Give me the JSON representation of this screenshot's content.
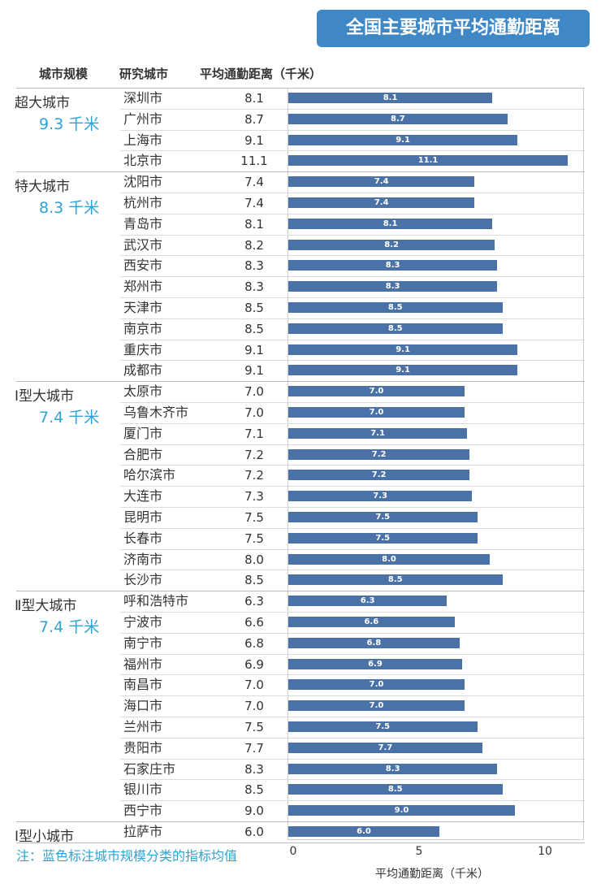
{
  "title": "全国主要城市平均通勤距离",
  "headers": {
    "scale": "城市规模",
    "city": "研究城市",
    "distance": "平均通勤距离（千米）"
  },
  "note": "注：蓝色标注城市规模分类的指标均值",
  "colors": {
    "bar": "#4a72a6",
    "accent": "#2ea3d6",
    "title_bg": "#3f88c5"
  },
  "chart_data": {
    "type": "bar",
    "orientation": "horizontal",
    "xlabel": "平均通勤距离（千米）",
    "xlim": [
      0,
      11.5
    ],
    "xticks": [
      "0",
      "5",
      "10"
    ],
    "groups": [
      {
        "name": "超大城市",
        "avg": "9.3 千米",
        "cities": [
          "深圳市",
          "广州市",
          "上海市",
          "北京市"
        ],
        "values": [
          8.1,
          8.7,
          9.1,
          11.1
        ]
      },
      {
        "name": "特大城市",
        "avg": "8.3 千米",
        "cities": [
          "沈阳市",
          "杭州市",
          "青岛市",
          "武汉市",
          "西安市",
          "郑州市",
          "天津市",
          "南京市",
          "重庆市",
          "成都市"
        ],
        "values": [
          7.4,
          7.4,
          8.1,
          8.2,
          8.3,
          8.3,
          8.5,
          8.5,
          9.1,
          9.1
        ]
      },
      {
        "name": "Ⅰ型大城市",
        "avg": "7.4 千米",
        "cities": [
          "太原市",
          "乌鲁木齐市",
          "厦门市",
          "合肥市",
          "哈尔滨市",
          "大连市",
          "昆明市",
          "长春市",
          "济南市",
          "长沙市"
        ],
        "values": [
          7.0,
          7.0,
          7.1,
          7.2,
          7.2,
          7.3,
          7.5,
          7.5,
          8.0,
          8.5
        ]
      },
      {
        "name": "Ⅱ型大城市",
        "avg": "7.4 千米",
        "cities": [
          "呼和浩特市",
          "宁波市",
          "南宁市",
          "福州市",
          "南昌市",
          "海口市",
          "兰州市",
          "贵阳市",
          "石家庄市",
          "银川市",
          "西宁市"
        ],
        "values": [
          6.3,
          6.6,
          6.8,
          6.9,
          7.0,
          7.0,
          7.5,
          7.7,
          8.3,
          8.5,
          9.0
        ]
      },
      {
        "name": "Ⅰ型小城市",
        "avg": "",
        "cities": [
          "拉萨市"
        ],
        "values": [
          6.0
        ]
      }
    ]
  }
}
